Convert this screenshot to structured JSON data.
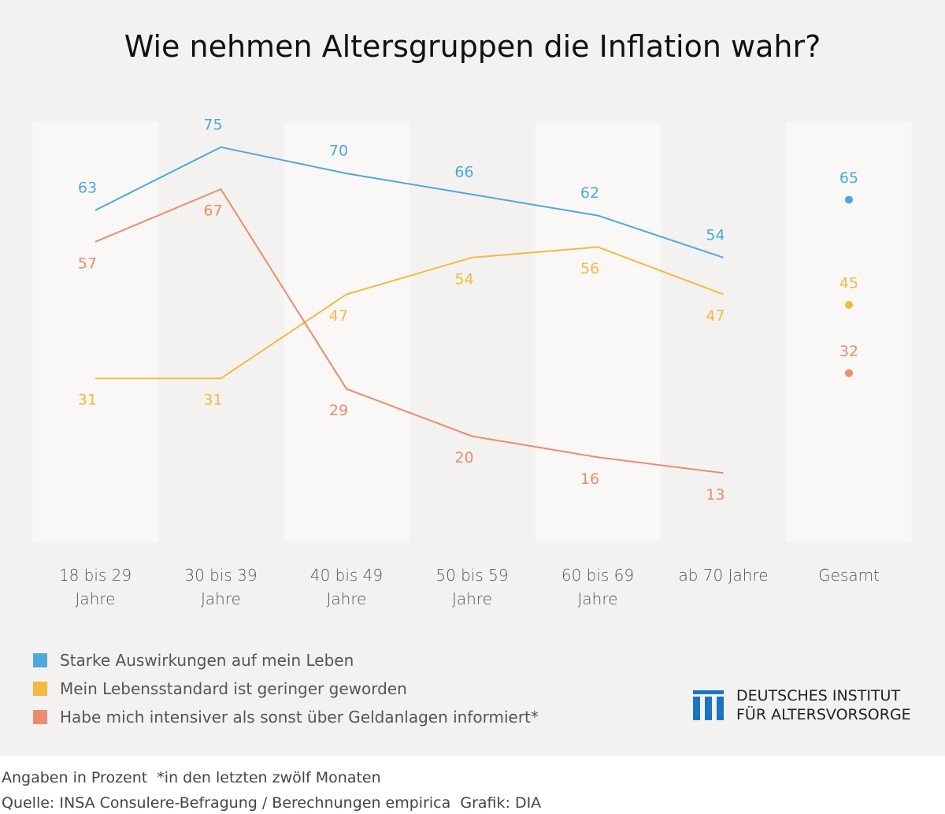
{
  "chart_data": {
    "type": "line",
    "title": "Wie nehmen Altersgruppen die Inflation wahr?",
    "categories": [
      "18 bis 29 Jahre",
      "30 bis 39 Jahre",
      "40 bis 49 Jahre",
      "50 bis 59 Jahre",
      "60 bis 69 Jahre",
      "ab 70 Jahre"
    ],
    "total_label": "Gesamt",
    "ylim": [
      0,
      100
    ],
    "series": [
      {
        "name": "Starke Auswirkungen auf mein Leben",
        "color": "#4fa8dc",
        "values": [
          63,
          75,
          70,
          66,
          62,
          54
        ],
        "total": 65
      },
      {
        "name": "Mein Lebensstandard ist geringer geworden",
        "color": "#f5b942",
        "values": [
          31,
          31,
          47,
          54,
          56,
          47
        ],
        "total": 45
      },
      {
        "name": "Habe mich intensiver als sonst über Geldanlagen informiert*",
        "color": "#ec8c6c",
        "values": [
          57,
          67,
          29,
          20,
          16,
          13
        ],
        "total": 32
      }
    ],
    "logo": [
      "DEUTSCHES INSTITUT",
      "FÜR ALTERSVORSORGE"
    ],
    "notes": [
      "Angaben in Prozent  *in den letzten zwölf Monaten",
      "Quelle: INSA Consulere-Befragung / Berechnungen empirica  Grafik: DIA"
    ]
  }
}
